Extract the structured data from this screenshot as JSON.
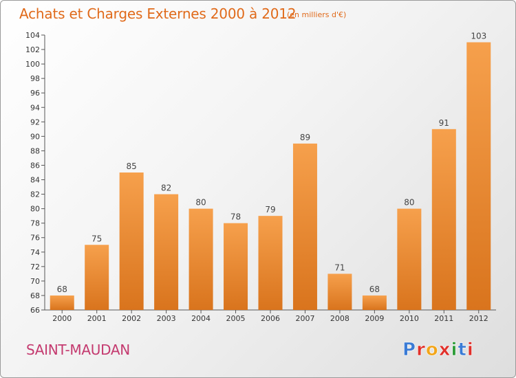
{
  "header": {
    "title": "Achats et Charges Externes 2000 à 2012",
    "unit": "(en milliers d'€)"
  },
  "footer": {
    "commune": "SAINT-MAUDAN",
    "logo_text": "Proxiti"
  },
  "colors": {
    "title": "#e06a1a",
    "commune": "#c43a6f",
    "bar_light": "#f6a04c",
    "bar_dark": "#d9741d",
    "logo": [
      "#3a7bd5",
      "#e0312b",
      "#f2a51a",
      "#e0312b",
      "#2e9d3a",
      "#3a7bd5",
      "#e0312b"
    ]
  },
  "chart_data": {
    "type": "bar",
    "title": "Achats et Charges Externes 2000 à 2012",
    "xlabel": "",
    "ylabel": "",
    "categories": [
      "2000",
      "2001",
      "2002",
      "2003",
      "2004",
      "2005",
      "2006",
      "2007",
      "2008",
      "2009",
      "2010",
      "2011",
      "2012"
    ],
    "values": [
      68,
      75,
      85,
      82,
      80,
      78,
      79,
      89,
      71,
      68,
      80,
      91,
      103
    ],
    "ylim": [
      66,
      104
    ],
    "yticks": [
      66,
      68,
      70,
      72,
      74,
      76,
      78,
      80,
      82,
      84,
      86,
      88,
      90,
      92,
      94,
      96,
      98,
      100,
      102,
      104
    ],
    "grid": false,
    "data_labels": true
  }
}
